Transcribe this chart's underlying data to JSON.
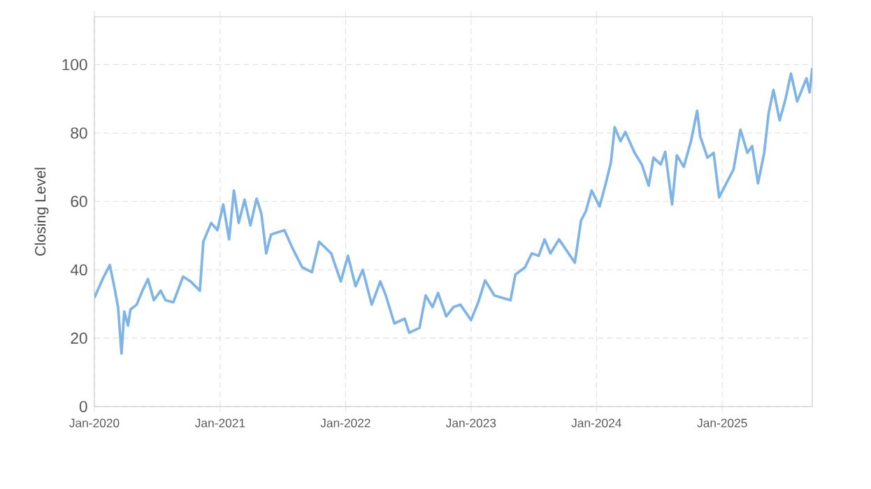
{
  "chart_data": {
    "type": "line",
    "ylabel": "Closing Level",
    "x": [
      "2020-01-01",
      "2020-01-25",
      "2020-02-15",
      "2020-03-01",
      "2020-03-10",
      "2020-03-20",
      "2020-03-28",
      "2020-04-08",
      "2020-04-15",
      "2020-05-03",
      "2020-05-20",
      "2020-06-05",
      "2020-06-22",
      "2020-07-12",
      "2020-07-26",
      "2020-08-18",
      "2020-09-15",
      "2020-10-07",
      "2020-11-03",
      "2020-11-13",
      "2020-12-06",
      "2020-12-24",
      "2021-01-10",
      "2021-01-27",
      "2021-02-10",
      "2021-02-24",
      "2021-03-13",
      "2021-03-30",
      "2021-04-17",
      "2021-05-01",
      "2021-05-15",
      "2021-05-29",
      "2021-07-07",
      "2021-07-31",
      "2021-08-28",
      "2021-09-25",
      "2021-10-16",
      "2021-11-20",
      "2021-12-18",
      "2022-01-08",
      "2022-01-30",
      "2022-02-20",
      "2022-03-18",
      "2022-04-12",
      "2022-04-28",
      "2022-05-23",
      "2022-06-22",
      "2022-07-05",
      "2022-08-04",
      "2022-08-22",
      "2022-09-11",
      "2022-09-27",
      "2022-10-21",
      "2022-11-11",
      "2022-12-01",
      "2023-01-01",
      "2023-01-22",
      "2023-02-11",
      "2023-03-10",
      "2023-04-26",
      "2023-05-10",
      "2023-06-07",
      "2023-06-27",
      "2023-07-17",
      "2023-08-03",
      "2023-08-20",
      "2023-09-14",
      "2023-10-07",
      "2023-10-30",
      "2023-11-17",
      "2023-12-01",
      "2023-12-18",
      "2024-01-10",
      "2024-01-30",
      "2024-02-12",
      "2024-02-23",
      "2024-03-11",
      "2024-03-25",
      "2024-04-21",
      "2024-05-12",
      "2024-06-01",
      "2024-06-15",
      "2024-07-06",
      "2024-07-19",
      "2024-08-08",
      "2024-08-22",
      "2024-09-11",
      "2024-10-02",
      "2024-10-20",
      "2024-10-29",
      "2024-11-19",
      "2024-12-07",
      "2024-12-23",
      "2025-01-13",
      "2025-02-03",
      "2025-02-23",
      "2025-03-15",
      "2025-03-29",
      "2025-04-15",
      "2025-05-03",
      "2025-05-16",
      "2025-05-30",
      "2025-06-17",
      "2025-07-04",
      "2025-07-20",
      "2025-08-07",
      "2025-09-03",
      "2025-09-12",
      "2025-09-20"
    ],
    "series": [
      {
        "color": "#7eb5e6",
        "values": [
          31.8,
          37.3,
          41.4,
          34,
          29,
          15.5,
          27.8,
          23.7,
          28.4,
          29.8,
          33.9,
          37.3,
          31.1,
          33.9,
          31.1,
          30.5,
          38,
          36.6,
          33.9,
          48.2,
          53.7,
          51.6,
          59.1,
          48.9,
          63.2,
          53.7,
          60.5,
          53,
          60.8,
          56.4,
          44.8,
          50.3,
          51.6,
          46.2,
          40.7,
          39.3,
          48.2,
          44.8,
          36.6,
          44.1,
          35.2,
          40,
          29.8,
          36.6,
          32.5,
          24.3,
          25.7,
          21.6,
          23,
          32.5,
          29.1,
          33.2,
          26.4,
          29.1,
          29.8,
          25.3,
          30.5,
          36.9,
          32.5,
          31.1,
          38.6,
          40.7,
          44.8,
          44.1,
          48.9,
          44.8,
          48.9,
          45.5,
          42.1,
          54.4,
          57.1,
          63.2,
          58.5,
          66,
          71.4,
          81.7,
          77.6,
          80.3,
          74.2,
          70.8,
          64.6,
          72.8,
          70.8,
          74.5,
          59.1,
          73.5,
          70.1,
          77.6,
          86.5,
          79,
          72.8,
          74.2,
          61.2,
          65.3,
          69.4,
          81,
          74.2,
          76.2,
          65.3,
          74.2,
          85.8,
          92.6,
          83.7,
          89.9,
          97.4,
          89.2,
          96,
          91.9,
          99
        ]
      }
    ],
    "xlim": [
      "2020-01-01",
      "2025-09-20"
    ],
    "xticks": [
      {
        "value": "2020-01-01",
        "label": "Jan-2020"
      },
      {
        "value": "2021-01-01",
        "label": "Jan-2021"
      },
      {
        "value": "2022-01-01",
        "label": "Jan-2022"
      },
      {
        "value": "2023-01-01",
        "label": "Jan-2023"
      },
      {
        "value": "2024-01-01",
        "label": "Jan-2024"
      },
      {
        "value": "2025-01-01",
        "label": "Jan-2025"
      }
    ],
    "ylim": [
      0,
      114
    ],
    "yticks": [
      0,
      20,
      40,
      60,
      80,
      100
    ],
    "grid": true,
    "line_style": "solid",
    "marker": "none"
  }
}
